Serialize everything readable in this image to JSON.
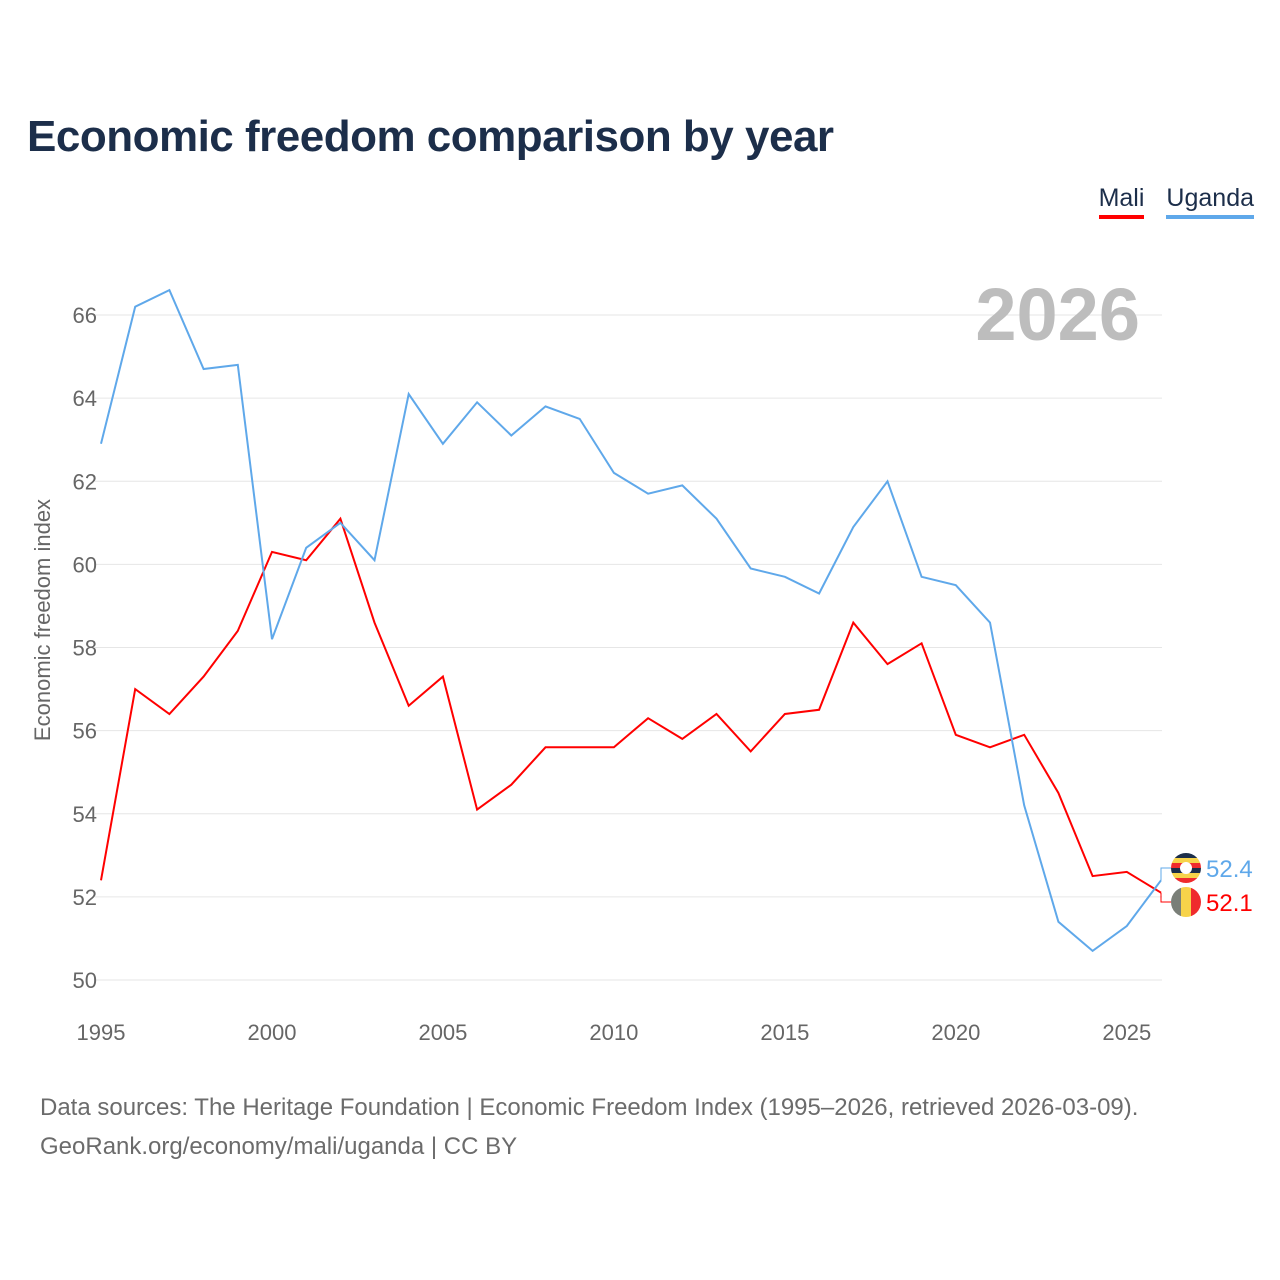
{
  "title": "Economic freedom comparison by year",
  "footer": {
    "line1": "Data sources: The Heritage Foundation | Economic Freedom Index (1995–2026, retrieved 2026-03-09).",
    "line2": "GeoRank.org/economy/mali/uganda | CC BY"
  },
  "chart_data": {
    "type": "line",
    "title": "Economic freedom comparison by year",
    "xlabel": "",
    "ylabel": "Economic freedom index",
    "watermark_year": "2026",
    "xlim": [
      1995,
      2026
    ],
    "ylim": [
      50,
      66
    ],
    "x_ticks": [
      "1995",
      "2000",
      "2005",
      "2010",
      "2015",
      "2020",
      "2025"
    ],
    "y_ticks": [
      "50",
      "52",
      "54",
      "56",
      "58",
      "60",
      "62",
      "64",
      "66"
    ],
    "grid": true,
    "legend_position": "top-right",
    "x": [
      1995,
      1996,
      1997,
      1998,
      1999,
      2000,
      2001,
      2002,
      2003,
      2004,
      2005,
      2006,
      2007,
      2008,
      2009,
      2010,
      2011,
      2012,
      2013,
      2014,
      2015,
      2016,
      2017,
      2018,
      2019,
      2020,
      2021,
      2022,
      2023,
      2024,
      2025,
      2026
    ],
    "series": [
      {
        "name": "Mali",
        "color": "#ff0000",
        "end_label": "52.1",
        "values": [
          52.4,
          57.0,
          56.4,
          57.3,
          58.4,
          60.3,
          60.1,
          61.1,
          58.6,
          56.6,
          57.3,
          54.1,
          54.7,
          55.6,
          55.6,
          55.6,
          56.3,
          55.8,
          56.4,
          55.5,
          56.4,
          56.5,
          58.6,
          57.6,
          58.1,
          55.9,
          55.6,
          55.9,
          54.5,
          52.5,
          52.6,
          52.1
        ]
      },
      {
        "name": "Uganda",
        "color": "#5fa8ea",
        "end_label": "52.4",
        "values": [
          62.9,
          66.2,
          66.6,
          64.7,
          64.8,
          58.2,
          60.4,
          61.0,
          60.1,
          64.1,
          62.9,
          63.9,
          63.1,
          63.8,
          63.5,
          62.2,
          61.7,
          61.9,
          61.1,
          59.9,
          59.7,
          59.3,
          60.9,
          62.0,
          59.7,
          59.5,
          58.6,
          54.2,
          51.4,
          50.7,
          51.3,
          52.4
        ]
      }
    ]
  }
}
